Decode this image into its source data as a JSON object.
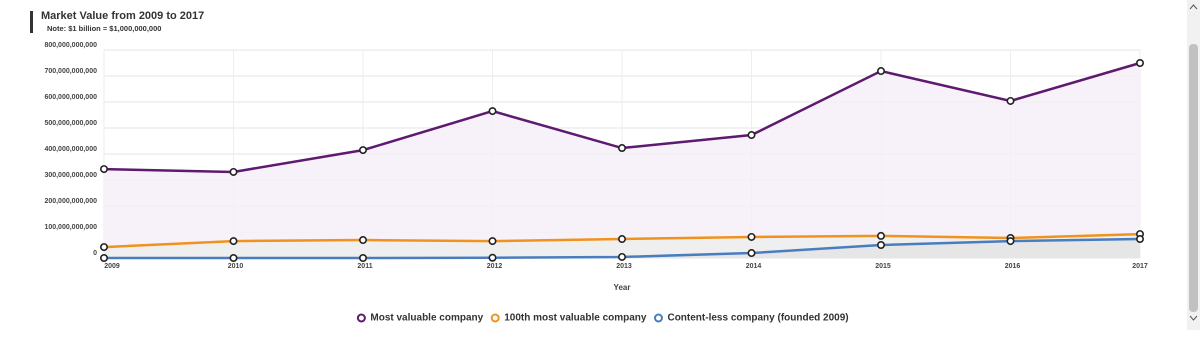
{
  "chart_data": {
    "type": "line",
    "title": "Market Value from 2009 to 2017",
    "subtitle": "Note: $1 billion = $1,000,000,000",
    "x_label": "Year",
    "categories": [
      "2009",
      "2010",
      "2011",
      "2012",
      "2013",
      "2014",
      "2015",
      "2016",
      "2017"
    ],
    "series": [
      {
        "name": "Most valuable company",
        "color": "#5e1a6e",
        "values": [
          342000000000,
          331000000000,
          415000000000,
          565000000000,
          423000000000,
          473000000000,
          719000000000,
          604000000000,
          750000000000
        ]
      },
      {
        "name": "100th most valuable company",
        "color": "#f0921e",
        "values": [
          42000000000,
          65000000000,
          69000000000,
          65000000000,
          73000000000,
          81000000000,
          85000000000,
          77000000000,
          92000000000
        ]
      },
      {
        "name": "Content-less company (founded 2009)",
        "color": "#4a7dbf",
        "values": [
          0,
          0,
          0,
          1000000000,
          4000000000,
          19000000000,
          50000000000,
          65000000000,
          73000000000
        ]
      }
    ],
    "ylim": [
      0,
      800000000000
    ],
    "yticks": [
      0,
      {
        "value": 100000000000,
        "label": "100,000,000,000"
      },
      {
        "value": 200000000000,
        "label": "200,000,000,000"
      },
      {
        "value": 300000000000,
        "label": "300,000,000,000"
      },
      {
        "value": 400000000000,
        "label": "400,000,000,000"
      },
      {
        "value": 500000000000,
        "label": "500,000,000,000"
      },
      {
        "value": 600000000000,
        "label": "600,000,000,000"
      },
      {
        "value": 700000000000,
        "label": "700,000,000,000"
      },
      {
        "value": 800000000000,
        "label": "800,000,000,000"
      }
    ],
    "grid": true
  }
}
